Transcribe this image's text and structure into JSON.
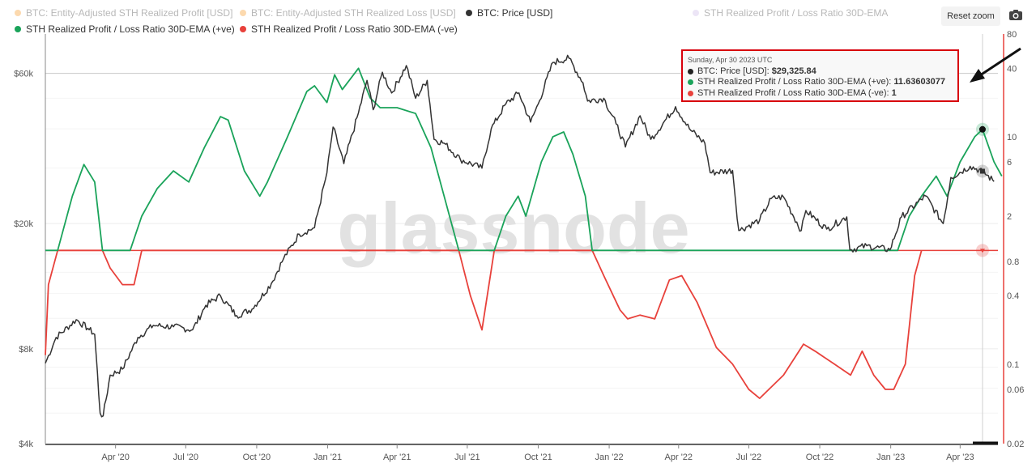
{
  "legend": [
    {
      "label": "BTC: Entity-Adjusted STH Realized Profit [USD]",
      "color": "#f7931a",
      "visible": false
    },
    {
      "label": "BTC: Entity-Adjusted STH Realized Loss [USD]",
      "color": "#f7931a",
      "visible": false
    },
    {
      "label": "BTC: Price [USD]",
      "color": "#333333",
      "visible": true
    },
    {
      "label": "STH Realized Profit / Loss Ratio 30D-EMA",
      "color": "#c9b6e8",
      "visible": false
    },
    {
      "label": "STH Realized Profit / Loss Ratio 30D-EMA (+ve)",
      "color": "#1aa35a",
      "visible": true
    },
    {
      "label": "STH Realized Profit / Loss Ratio 30D-EMA (-ve)",
      "color": "#e8413b",
      "visible": true
    }
  ],
  "toolbar": {
    "reset_zoom_label": "Reset zoom",
    "camera_icon": "camera-icon"
  },
  "watermark": "glassnode",
  "tooltip": {
    "date": "Sunday, Apr 30 2023 UTC",
    "rows": [
      {
        "label": "BTC: Price [USD]: ",
        "value": "$29,325.84",
        "color": "#222222"
      },
      {
        "label": "STH Realized Profit / Loss Ratio 30D-EMA (+ve): ",
        "value": "11.63603077",
        "color": "#1aa35a"
      },
      {
        "label": "STH Realized Profit / Loss Ratio 30D-EMA (-ve): ",
        "value": "1",
        "color": "#e8413b"
      }
    ]
  },
  "chart_data": {
    "type": "line",
    "x_range": [
      "2020-01-01",
      "2023-05-20"
    ],
    "x_ticks": [
      "Apr '20",
      "Jul '20",
      "Oct '20",
      "Jan '21",
      "Apr '21",
      "Jul '21",
      "Oct '21",
      "Jan '22",
      "Apr '22",
      "Jul '22",
      "Oct '22",
      "Jan '23",
      "Apr '23"
    ],
    "y_left": {
      "scale": "log",
      "ticks": [
        "$4k",
        "$8k",
        "$20k",
        "$60k"
      ],
      "tick_values": [
        4000,
        8000,
        20000,
        60000
      ],
      "range": [
        4000,
        80000
      ]
    },
    "y_right": {
      "scale": "log",
      "ticks": [
        "0.02",
        "0.06",
        "0.1",
        "0.4",
        "0.8",
        "2",
        "6",
        "10",
        "40",
        "80"
      ],
      "tick_values": [
        0.02,
        0.06,
        0.1,
        0.4,
        0.8,
        2,
        6,
        10,
        40,
        80
      ],
      "range": [
        0.02,
        80
      ]
    },
    "reference_line": {
      "axis": "right",
      "value": 1,
      "color": "#e8413b"
    },
    "price": {
      "name": "BTC: Price [USD]",
      "axis": "left",
      "color": "#333333",
      "points": [
        [
          "2020-01-01",
          7200
        ],
        [
          "2020-01-15",
          8700
        ],
        [
          "2020-02-10",
          9900
        ],
        [
          "2020-02-25",
          9300
        ],
        [
          "2020-03-05",
          8900
        ],
        [
          "2020-03-12",
          5000
        ],
        [
          "2020-03-16",
          4900
        ],
        [
          "2020-03-25",
          6600
        ],
        [
          "2020-04-10",
          6900
        ],
        [
          "2020-04-30",
          8700
        ],
        [
          "2020-05-20",
          9500
        ],
        [
          "2020-06-15",
          9400
        ],
        [
          "2020-07-10",
          9200
        ],
        [
          "2020-07-27",
          11000
        ],
        [
          "2020-08-15",
          11800
        ],
        [
          "2020-09-05",
          10200
        ],
        [
          "2020-09-25",
          10700
        ],
        [
          "2020-10-20",
          12900
        ],
        [
          "2020-11-05",
          15500
        ],
        [
          "2020-11-25",
          18500
        ],
        [
          "2020-12-15",
          19400
        ],
        [
          "2020-12-31",
          29000
        ],
        [
          "2021-01-08",
          40500
        ],
        [
          "2021-01-22",
          31000
        ],
        [
          "2021-02-10",
          45000
        ],
        [
          "2021-02-21",
          57000
        ],
        [
          "2021-03-01",
          46000
        ],
        [
          "2021-03-13",
          60500
        ],
        [
          "2021-03-25",
          52000
        ],
        [
          "2021-04-13",
          63500
        ],
        [
          "2021-04-25",
          50000
        ],
        [
          "2021-05-10",
          57000
        ],
        [
          "2021-05-19",
          37000
        ],
        [
          "2021-06-01",
          36000
        ],
        [
          "2021-06-22",
          32000
        ],
        [
          "2021-07-20",
          30000
        ],
        [
          "2021-08-01",
          40000
        ],
        [
          "2021-08-20",
          48000
        ],
        [
          "2021-09-06",
          52000
        ],
        [
          "2021-09-21",
          42000
        ],
        [
          "2021-10-01",
          48000
        ],
        [
          "2021-10-20",
          65000
        ],
        [
          "2021-11-10",
          67000
        ],
        [
          "2021-11-28",
          56000
        ],
        [
          "2021-12-04",
          49000
        ],
        [
          "2021-12-25",
          50000
        ],
        [
          "2022-01-10",
          41500
        ],
        [
          "2022-01-22",
          35000
        ],
        [
          "2022-02-10",
          44000
        ],
        [
          "2022-02-24",
          37000
        ],
        [
          "2022-03-28",
          47000
        ],
        [
          "2022-04-15",
          40000
        ],
        [
          "2022-05-05",
          36000
        ],
        [
          "2022-05-12",
          29000
        ],
        [
          "2022-06-10",
          29500
        ],
        [
          "2022-06-18",
          19000
        ],
        [
          "2022-07-15",
          20500
        ],
        [
          "2022-07-30",
          24000
        ],
        [
          "2022-08-15",
          24300
        ],
        [
          "2022-09-07",
          19000
        ],
        [
          "2022-09-13",
          22000
        ],
        [
          "2022-10-10",
          19200
        ],
        [
          "2022-11-05",
          21000
        ],
        [
          "2022-11-09",
          16500
        ],
        [
          "2022-12-01",
          17000
        ],
        [
          "2022-12-31",
          16500
        ],
        [
          "2023-01-15",
          21000
        ],
        [
          "2023-02-15",
          24500
        ],
        [
          "2023-03-10",
          20000
        ],
        [
          "2023-03-20",
          28000
        ],
        [
          "2023-04-14",
          30400
        ],
        [
          "2023-04-30",
          29325
        ],
        [
          "2023-05-15",
          27200
        ]
      ]
    },
    "ratio_pos": {
      "name": "STH Realized Profit / Loss Ratio 30D-EMA (+ve)",
      "axis": "right",
      "color": "#1aa35a",
      "points": [
        [
          "2020-01-01",
          1
        ],
        [
          "2020-01-17",
          1
        ],
        [
          "2020-02-05",
          3
        ],
        [
          "2020-02-20",
          5.7
        ],
        [
          "2020-03-05",
          4
        ],
        [
          "2020-03-15",
          1
        ],
        [
          "2020-04-20",
          1
        ],
        [
          "2020-05-05",
          2
        ],
        [
          "2020-05-25",
          3.5
        ],
        [
          "2020-06-15",
          5
        ],
        [
          "2020-07-05",
          4
        ],
        [
          "2020-07-25",
          8
        ],
        [
          "2020-08-15",
          15
        ],
        [
          "2020-08-25",
          14
        ],
        [
          "2020-09-15",
          5
        ],
        [
          "2020-10-05",
          3
        ],
        [
          "2020-10-15",
          4
        ],
        [
          "2020-11-10",
          10
        ],
        [
          "2020-12-05",
          25
        ],
        [
          "2020-12-15",
          28
        ],
        [
          "2020-12-31",
          20
        ],
        [
          "2021-01-10",
          35
        ],
        [
          "2021-01-20",
          26
        ],
        [
          "2021-02-10",
          40
        ],
        [
          "2021-02-25",
          22
        ],
        [
          "2021-03-10",
          18
        ],
        [
          "2021-04-01",
          18
        ],
        [
          "2021-04-25",
          16
        ],
        [
          "2021-05-15",
          8
        ],
        [
          "2021-06-01",
          3
        ],
        [
          "2021-06-20",
          1
        ],
        [
          "2021-07-01",
          1
        ],
        [
          "2021-08-05",
          1
        ],
        [
          "2021-08-20",
          2
        ],
        [
          "2021-09-05",
          3
        ],
        [
          "2021-09-15",
          2
        ],
        [
          "2021-10-05",
          6
        ],
        [
          "2021-10-20",
          10
        ],
        [
          "2021-11-03",
          11
        ],
        [
          "2021-11-15",
          7
        ],
        [
          "2021-12-01",
          3
        ],
        [
          "2021-12-10",
          1
        ],
        [
          "2022-08-15",
          1
        ],
        [
          "2023-01-10",
          1
        ],
        [
          "2023-01-25",
          2
        ],
        [
          "2023-02-10",
          3
        ],
        [
          "2023-03-01",
          4.5
        ],
        [
          "2023-03-15",
          3
        ],
        [
          "2023-04-01",
          6
        ],
        [
          "2023-04-20",
          10
        ],
        [
          "2023-04-30",
          11.6
        ],
        [
          "2023-05-15",
          6
        ],
        [
          "2023-05-25",
          4.5
        ]
      ]
    },
    "ratio_neg": {
      "name": "STH Realized Profit / Loss Ratio 30D-EMA (-ve)",
      "axis": "right",
      "color": "#e8413b",
      "points": [
        [
          "2020-01-01",
          0.12
        ],
        [
          "2020-01-05",
          0.5
        ],
        [
          "2020-01-17",
          1
        ],
        [
          "2020-03-15",
          1
        ],
        [
          "2020-03-25",
          0.7
        ],
        [
          "2020-04-10",
          0.5
        ],
        [
          "2020-04-25",
          0.5
        ],
        [
          "2020-05-05",
          1
        ],
        [
          "2021-06-20",
          1
        ],
        [
          "2021-07-05",
          0.4
        ],
        [
          "2021-07-20",
          0.2
        ],
        [
          "2021-08-05",
          1
        ],
        [
          "2021-12-10",
          1
        ],
        [
          "2021-12-25",
          0.6
        ],
        [
          "2022-01-15",
          0.3
        ],
        [
          "2022-01-25",
          0.25
        ],
        [
          "2022-02-10",
          0.27
        ],
        [
          "2022-03-01",
          0.25
        ],
        [
          "2022-03-20",
          0.55
        ],
        [
          "2022-04-05",
          0.6
        ],
        [
          "2022-04-25",
          0.35
        ],
        [
          "2022-05-20",
          0.14
        ],
        [
          "2022-06-10",
          0.1
        ],
        [
          "2022-07-01",
          0.06
        ],
        [
          "2022-07-15",
          0.05
        ],
        [
          "2022-08-15",
          0.08
        ],
        [
          "2022-09-10",
          0.15
        ],
        [
          "2022-09-25",
          0.13
        ],
        [
          "2022-10-20",
          0.1
        ],
        [
          "2022-11-10",
          0.08
        ],
        [
          "2022-11-25",
          0.13
        ],
        [
          "2022-12-10",
          0.08
        ],
        [
          "2022-12-25",
          0.06
        ],
        [
          "2023-01-05",
          0.06
        ],
        [
          "2023-01-20",
          0.1
        ],
        [
          "2023-02-01",
          0.6
        ],
        [
          "2023-02-10",
          1
        ]
      ]
    },
    "highlight_date": "2023-04-30"
  }
}
